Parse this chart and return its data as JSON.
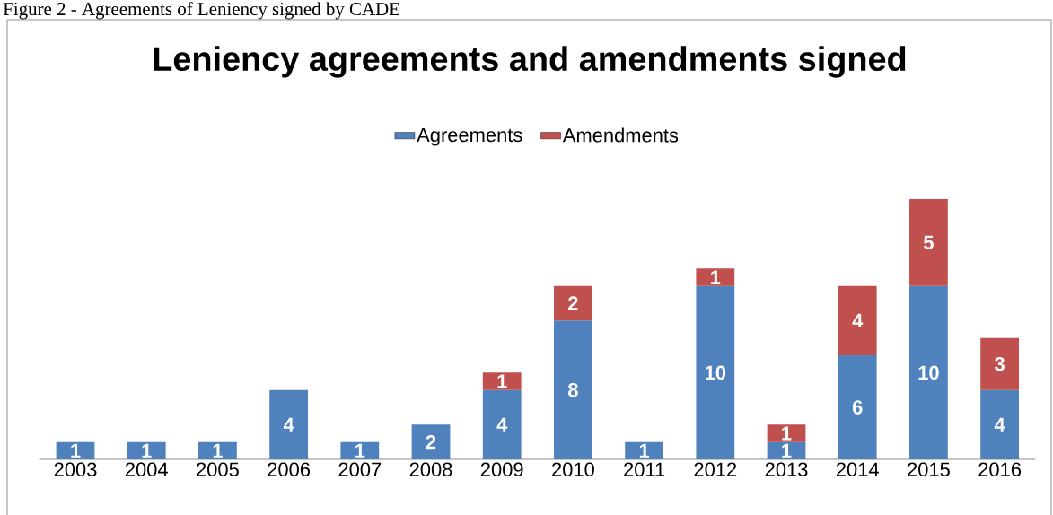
{
  "chart_data": {
    "type": "bar",
    "title": "Leniency agreements and amendments signed",
    "annotations": [
      "Figure 2 - Agreements of Leniency signed by CADE"
    ],
    "categories": [
      "2003",
      "2004",
      "2005",
      "2006",
      "2007",
      "2008",
      "2009",
      "2010",
      "2011",
      "2012",
      "2013",
      "2014",
      "2015",
      "2016"
    ],
    "series": [
      {
        "name": "Agreements",
        "color": "#4f81bd",
        "values": [
          1,
          1,
          1,
          4,
          1,
          2,
          4,
          8,
          1,
          10,
          1,
          6,
          10,
          4
        ]
      },
      {
        "name": "Amendments",
        "color": "#c0504d",
        "values": [
          null,
          null,
          null,
          null,
          null,
          null,
          1,
          2,
          null,
          1,
          1,
          4,
          5,
          3
        ]
      }
    ],
    "stacked": true,
    "data_labels": true,
    "legend": "top"
  }
}
